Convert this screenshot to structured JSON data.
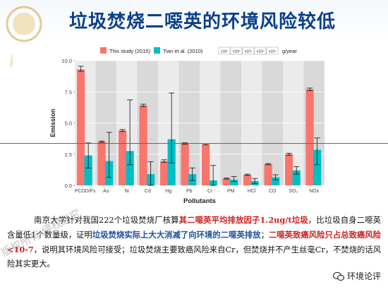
{
  "slide": {
    "title": "垃圾焚烧二噁英的环境风险较低",
    "paragraph": [
      {
        "t": "南京大学针对我国222个垃圾焚烧厂核算"
      },
      {
        "t": "其二噁英平均排放因子1.2ug/t垃圾",
        "c": "red"
      },
      {
        "t": "，比垃圾自身二噁英含量低1个数量级，证明"
      },
      {
        "t": "垃圾焚烧实际上大大消减了向环境的二噁英排放",
        "c": "blue"
      },
      {
        "t": "；"
      },
      {
        "t": "二噁英致癌风险只占总致癌风险<10-7",
        "c": "red"
      },
      {
        "t": "，说明其环境风险可接受；垃圾焚烧主要致癌风险来自Cr，但焚烧并不产生丝毫Cr，不焚烧的话风险其实更大。"
      }
    ],
    "watermark_left": "版权所有 侵权必究",
    "watermark_right": "环境论评"
  },
  "chart_data": {
    "type": "bar",
    "categories": [
      "PCDD/Fs",
      "As",
      "Ni",
      "Cd",
      "Hg",
      "Pb",
      "Cr",
      "PM",
      "HCl",
      "CO",
      "SO₂",
      "NOx"
    ],
    "series": [
      {
        "name": "This study (2015)",
        "color": "#f8766d",
        "values": [
          9.3,
          3.5,
          4.4,
          6.4,
          1.95,
          3.35,
          3.3,
          0.55,
          0.85,
          1.7,
          2.5,
          7.7
        ],
        "err_low": [
          0.15,
          0.05,
          0.08,
          0.08,
          0.1,
          0.06,
          0.05,
          0.05,
          0.05,
          0.05,
          0.08,
          0.1
        ],
        "err_high": [
          0.25,
          0.05,
          0.08,
          0.1,
          0.1,
          0.06,
          0.05,
          0.05,
          0.05,
          0.05,
          0.08,
          0.1
        ]
      },
      {
        "name": "Tian et al. (2010)",
        "color": "#00bfc4",
        "values": [
          2.4,
          1.95,
          2.75,
          0.9,
          3.7,
          0.9,
          0.4,
          0.45,
          0.35,
          0.65,
          1.2,
          2.85
        ],
        "err_low": [
          1.0,
          1.3,
          1.1,
          0.9,
          1.9,
          0.5,
          0.4,
          0.15,
          0.2,
          0.2,
          0.3,
          1.2
        ],
        "err_high": [
          1.0,
          2.3,
          4.1,
          1.0,
          3.7,
          0.5,
          1.2,
          0.25,
          0.2,
          0.2,
          0.3,
          0.95
        ]
      }
    ],
    "unit_legend": [
      "x10¹",
      "x10³",
      "x10⁴",
      "x10⁵",
      "x10⁸",
      "g/year"
    ],
    "xlabel": "Pollutants",
    "ylabel": "Emission",
    "yticks": [
      "0.0",
      "2.5",
      "5.0",
      "7.5",
      "10.0"
    ],
    "ylim": [
      0,
      10.0
    ],
    "grid": true,
    "legend": "top"
  },
  "colors": {
    "title": "#0a3f8c",
    "panel_light": "#ebebeb",
    "panel_dark": "#d9d9d9"
  }
}
